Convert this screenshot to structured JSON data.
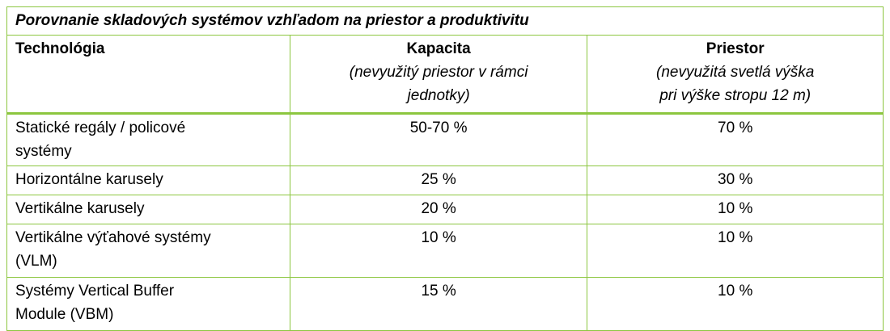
{
  "table": {
    "title": "Porovnanie skladových systémov vzhľadom na priestor a produktivitu",
    "header": [
      {
        "title": "Technológia",
        "subtitle": []
      },
      {
        "title": "Kapacita",
        "subtitle": [
          "(nevyužitý priestor v rámci",
          "jednotky)"
        ]
      },
      {
        "title": "Priestor",
        "subtitle": [
          "(nevyužitá svetlá výška",
          "pri výške stropu 12 m)"
        ]
      }
    ],
    "rows": [
      [
        [
          "Statické regály / policové",
          "systémy"
        ],
        [
          "50-70 %"
        ],
        [
          "70 %"
        ]
      ],
      [
        [
          "Horizontálne karusely"
        ],
        [
          "25 %"
        ],
        [
          "30 %"
        ]
      ],
      [
        [
          "Vertikálne karusely"
        ],
        [
          "20 %"
        ],
        [
          "10 %"
        ]
      ],
      [
        [
          "Vertikálne výťahové systémy",
          "(VLM)"
        ],
        [
          "10 %"
        ],
        [
          "10 %"
        ]
      ],
      [
        [
          "Systémy Vertical Buffer",
          "Module (VBM)"
        ],
        [
          "15 %"
        ],
        [
          "10 %"
        ]
      ]
    ]
  }
}
